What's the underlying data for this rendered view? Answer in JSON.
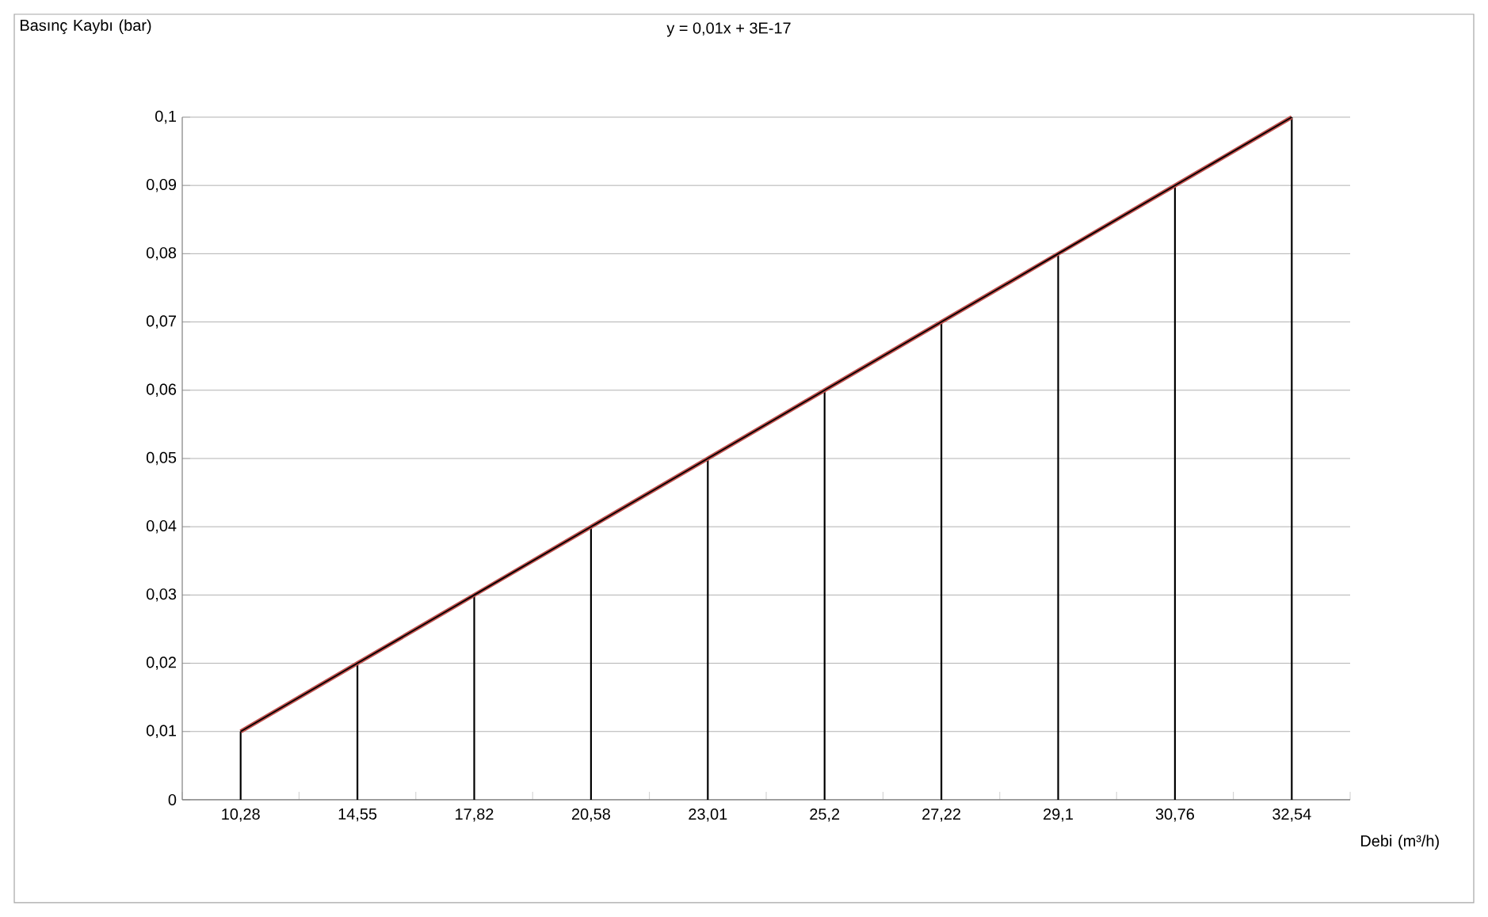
{
  "chart_data": {
    "type": "line",
    "ylabel": "Basınç Kaybı (bar)",
    "xlabel": "Debi (m³/h)",
    "annotations": [
      "y = 0,01x + 3E-17"
    ],
    "categories": [
      "10,28",
      "14,55",
      "17,82",
      "20,58",
      "23,01",
      "25,2",
      "27,22",
      "29,1",
      "30,76",
      "32,54"
    ],
    "series": [
      {
        "type": "bar",
        "color": "#000000",
        "values": [
          0.01,
          0.02,
          0.03,
          0.04,
          0.05,
          0.06,
          0.07,
          0.08,
          0.09,
          0.1
        ]
      },
      {
        "color": "#c0504d",
        "values": [
          0.01,
          0.02,
          0.03,
          0.04,
          0.05,
          0.06,
          0.07,
          0.08,
          0.09,
          0.1
        ]
      },
      {
        "color": "#000000",
        "values": [
          0.01,
          0.02,
          0.03,
          0.04,
          0.05,
          0.06,
          0.07,
          0.08,
          0.09,
          0.1
        ]
      }
    ],
    "ylim": [
      0,
      0.1
    ],
    "yticks": [
      {
        "value": 0,
        "label": "0"
      },
      {
        "value": 0.01,
        "label": "0,01"
      },
      {
        "value": 0.02,
        "label": "0,02"
      },
      {
        "value": 0.03,
        "label": "0,03"
      },
      {
        "value": 0.04,
        "label": "0,04"
      },
      {
        "value": 0.05,
        "label": "0,05"
      },
      {
        "value": 0.06,
        "label": "0,06"
      },
      {
        "value": 0.07,
        "label": "0,07"
      },
      {
        "value": 0.08,
        "label": "0,08"
      },
      {
        "value": 0.09,
        "label": "0,09"
      },
      {
        "value": 0.1,
        "label": "0,1"
      }
    ],
    "grid": "y",
    "marker": "none",
    "line_style": "solid"
  }
}
